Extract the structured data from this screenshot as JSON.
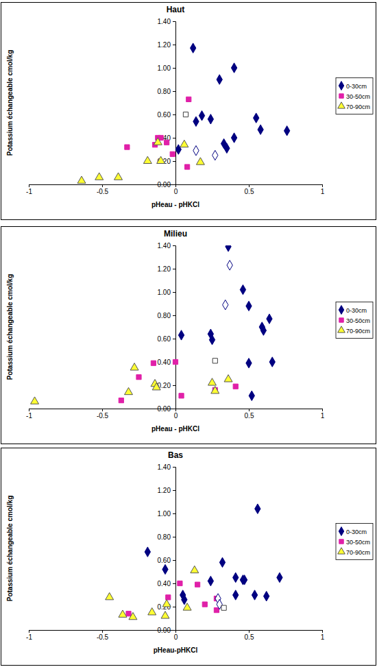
{
  "chart_data": [
    {
      "type": "scatter",
      "title": "Haut",
      "x_label": "pHeau - pHKCl",
      "y_label": "Potassium échangeable cmol/kg",
      "xlim": [
        -1,
        1
      ],
      "xticks": [
        -1,
        -0.5,
        0,
        0.5,
        1
      ],
      "ylim": [
        0,
        1.4
      ],
      "yticks": [
        {
          "value": 0,
          "label": "0.00"
        },
        {
          "value": 0.2,
          "label": "0.20"
        },
        {
          "value": 0.4,
          "label": "0.40"
        },
        {
          "value": 0.6,
          "label": "0.60"
        },
        {
          "value": 0.8,
          "label": "0.80"
        },
        {
          "value": 1.0,
          "label": "1.00"
        },
        {
          "value": 1.2,
          "label": "1.20"
        },
        {
          "value": 1.4,
          "label": "1.40"
        }
      ],
      "grid": false,
      "legend": "right",
      "series": [
        {
          "name": "0-30cm",
          "color": "#000080",
          "marker": "diamond",
          "x": [
            0.12,
            0.3,
            0.4,
            0.18,
            0.14,
            0.24,
            0.55,
            0.58,
            0.76,
            0.4,
            0.33,
            0.35,
            0.02
          ],
          "values": [
            1.17,
            0.9,
            1.0,
            0.59,
            0.54,
            0.56,
            0.57,
            0.47,
            0.46,
            0.4,
            0.35,
            0.31,
            0.3
          ]
        },
        {
          "name": "30-50cm",
          "color": "#e020a8",
          "marker": "square",
          "x": [
            0.09,
            -0.33,
            -0.14,
            -0.1,
            -0.06,
            -0.02,
            0.08,
            -0.12
          ],
          "values": [
            0.73,
            0.32,
            0.34,
            0.4,
            0.36,
            0.26,
            0.15,
            0.4
          ]
        },
        {
          "name": "70-90cm",
          "color": "#ffff33",
          "marker": "triangle",
          "x": [
            -0.64,
            -0.52,
            -0.39,
            -0.19,
            -0.12,
            -0.1,
            0.06,
            0.17
          ],
          "values": [
            0.03,
            0.06,
            0.06,
            0.2,
            0.36,
            0.2,
            0.34,
            0.19
          ]
        },
        {
          "color": "#000080",
          "marker": "diamond-open",
          "x": [
            0.14,
            0.27
          ],
          "values": [
            0.29,
            0.25
          ]
        },
        {
          "color": "#404040",
          "marker": "square-open",
          "x": [
            0.07
          ],
          "values": [
            0.6
          ]
        }
      ]
    },
    {
      "type": "scatter",
      "title": "Milieu",
      "x_label": "pHeau - pHKCl",
      "y_label": "Potassium échangeable cmol/kg",
      "xlim": [
        -1,
        1
      ],
      "xticks": [
        -1,
        -0.5,
        0,
        0.5,
        1
      ],
      "ylim": [
        0,
        1.4
      ],
      "yticks": [
        {
          "value": 0,
          "label": "0.00"
        },
        {
          "value": 0.2,
          "label": "0.20"
        },
        {
          "value": 0.4,
          "label": "0.40"
        },
        {
          "value": 0.6,
          "label": "0.60"
        },
        {
          "value": 0.8,
          "label": "0.80"
        },
        {
          "value": 1.0,
          "label": "1.00"
        },
        {
          "value": 1.2,
          "label": "1.20"
        },
        {
          "value": 1.4,
          "label": "1.40"
        }
      ],
      "grid": false,
      "legend": "right",
      "series": [
        {
          "name": "0-30cm",
          "color": "#000080",
          "marker": "diamond",
          "x": [
            0.36,
            0.46,
            0.5,
            0.59,
            0.6,
            0.64,
            0.04,
            0.24,
            0.25,
            0.5,
            0.66,
            0.52
          ],
          "values": [
            1.39,
            1.02,
            0.88,
            0.7,
            0.67,
            0.77,
            0.63,
            0.64,
            0.59,
            0.39,
            0.4,
            0.11
          ]
        },
        {
          "name": "30-50cm",
          "color": "#e020a8",
          "marker": "square",
          "x": [
            -0.15,
            -0.25,
            -0.37,
            0.0,
            0.04,
            0.27,
            0.41
          ],
          "values": [
            0.39,
            0.27,
            0.07,
            0.4,
            0.11,
            0.16,
            0.19
          ]
        },
        {
          "name": "70-90cm",
          "color": "#ffff33",
          "marker": "triangle",
          "x": [
            -0.96,
            -0.28,
            -0.32,
            -0.14,
            -0.13,
            0.25,
            0.36,
            0.27
          ],
          "values": [
            0.06,
            0.35,
            0.14,
            0.21,
            0.18,
            0.22,
            0.25,
            0.15
          ]
        },
        {
          "color": "#000080",
          "marker": "diamond-open",
          "x": [
            0.37,
            0.34
          ],
          "values": [
            1.23,
            0.89
          ]
        },
        {
          "color": "#404040",
          "marker": "square-open",
          "x": [
            0.27
          ],
          "values": [
            0.41
          ]
        }
      ]
    },
    {
      "type": "scatter",
      "title": "Bas",
      "x_label": "pHeau-pHKCl",
      "y_label": "Potassium échangeable cmol/kg",
      "xlim": [
        -1,
        1
      ],
      "xticks": [
        -1,
        -0.5,
        0,
        0.5,
        1
      ],
      "ylim": [
        0,
        1.4
      ],
      "yticks": [
        {
          "value": 0,
          "label": "0.00"
        },
        {
          "value": 0.2,
          "label": "0.20"
        },
        {
          "value": 0.4,
          "label": "0.40"
        },
        {
          "value": 0.6,
          "label": "0.60"
        },
        {
          "value": 0.8,
          "label": "0.80"
        },
        {
          "value": 1.0,
          "label": "1.00"
        },
        {
          "value": 1.2,
          "label": "1.20"
        },
        {
          "value": 1.4,
          "label": "1.40"
        }
      ],
      "grid": false,
      "legend": "right",
      "series": [
        {
          "name": "0-30cm",
          "color": "#000080",
          "marker": "diamond",
          "x": [
            -0.19,
            -0.07,
            0.56,
            0.32,
            0.05,
            0.06,
            0.24,
            0.41,
            0.46,
            0.47,
            0.41,
            0.54,
            0.62,
            0.71
          ],
          "values": [
            0.67,
            0.52,
            1.04,
            0.58,
            0.3,
            0.26,
            0.42,
            0.45,
            0.43,
            0.43,
            0.3,
            0.3,
            0.29,
            0.45
          ]
        },
        {
          "name": "30-50cm",
          "color": "#e020a8",
          "marker": "square",
          "x": [
            -0.32,
            0.03,
            -0.05,
            0.15,
            0.2,
            0.28,
            0.28
          ],
          "values": [
            0.14,
            0.4,
            0.28,
            0.39,
            0.22,
            0.27,
            0.17
          ]
        },
        {
          "name": "70-90cm",
          "color": "#ffff33",
          "marker": "triangle",
          "x": [
            -0.45,
            -0.36,
            -0.29,
            -0.16,
            -0.06,
            -0.07,
            0.08,
            0.13
          ],
          "values": [
            0.28,
            0.13,
            0.11,
            0.15,
            0.22,
            0.12,
            0.19,
            0.51
          ]
        },
        {
          "color": "#000080",
          "marker": "diamond-open",
          "x": [
            0.29,
            0.3
          ],
          "values": [
            0.27,
            0.22
          ]
        },
        {
          "color": "#404040",
          "marker": "square-open",
          "x": [
            0.33
          ],
          "values": [
            0.19
          ]
        }
      ]
    }
  ]
}
